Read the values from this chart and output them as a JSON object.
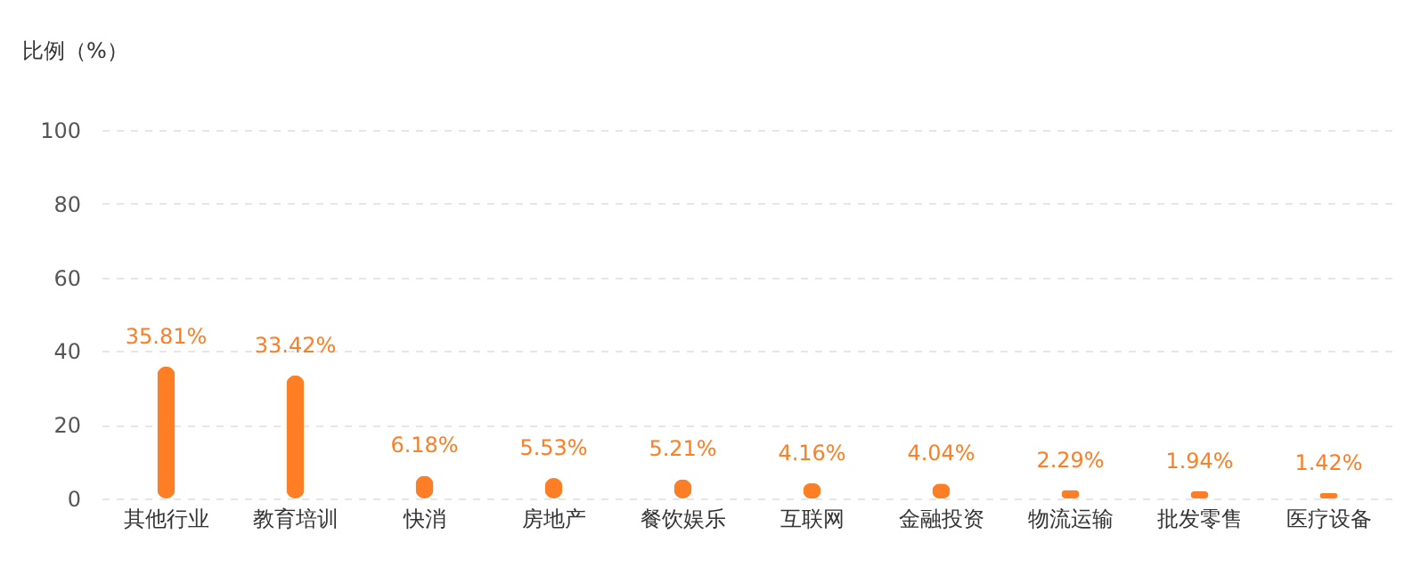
{
  "chart_data": {
    "type": "bar",
    "ylabel": "比例（%）",
    "categories": [
      "其他行业",
      "教育培训",
      "快消",
      "房地产",
      "餐饮娱乐",
      "互联网",
      "金融投资",
      "物流运输",
      "批发零售",
      "医疗设备"
    ],
    "values": [
      35.81,
      33.42,
      6.18,
      5.53,
      5.21,
      4.16,
      4.04,
      2.29,
      1.94,
      1.42
    ],
    "value_labels": [
      "35.81%",
      "33.42%",
      "6.18%",
      "5.53%",
      "5.21%",
      "4.16%",
      "4.04%",
      "2.29%",
      "1.94%",
      "1.42%"
    ],
    "color": "#fd7e24",
    "ylim": [
      0,
      100
    ],
    "yticks": [
      0,
      20,
      40,
      60,
      80,
      100
    ],
    "grid": "y"
  }
}
